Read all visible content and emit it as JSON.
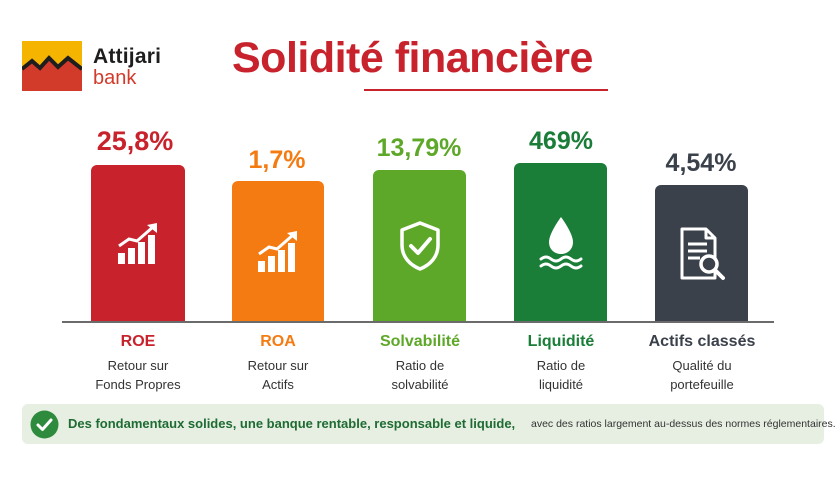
{
  "brand": {
    "name": "Attijari",
    "sub": "bank",
    "colors": {
      "yellow": "#f5b400",
      "red": "#d23a2a",
      "black": "#1e1e1e"
    }
  },
  "title": "Solidité financière",
  "indicators": [
    {
      "value": "25,8%",
      "name": "ROE",
      "desc1": "Retour sur",
      "desc2": "Fonds Propres",
      "icon": "growth-chart-icon",
      "color": "#c8222c"
    },
    {
      "value": "1,7%",
      "name": "ROA",
      "desc1": "Retour sur",
      "desc2": "Actifs",
      "icon": "growth-chart-icon",
      "color": "#f47b12"
    },
    {
      "value": "13,79%",
      "name": "Solvabilité",
      "desc1": "Ratio de",
      "desc2": "solvabilité",
      "icon": "shield-check-icon",
      "color": "#5ea829"
    },
    {
      "value": "469%",
      "name": "Liquidité",
      "desc1": "Ratio de",
      "desc2": "liquidité",
      "icon": "water-drop-icon",
      "color": "#1a7d38"
    },
    {
      "value": "4,54%",
      "name": "Actifs classés",
      "desc1": "Qualité du",
      "desc2": "portefeuille",
      "icon": "document-search-icon",
      "color": "#3a414b"
    }
  ],
  "banner": {
    "strong": "Des fondamentaux solides, une banque rentable, responsable et liquide,",
    "rest": "avec des ratios largement au-dessus des normes réglementaires.",
    "icon": "check-circle-icon"
  }
}
